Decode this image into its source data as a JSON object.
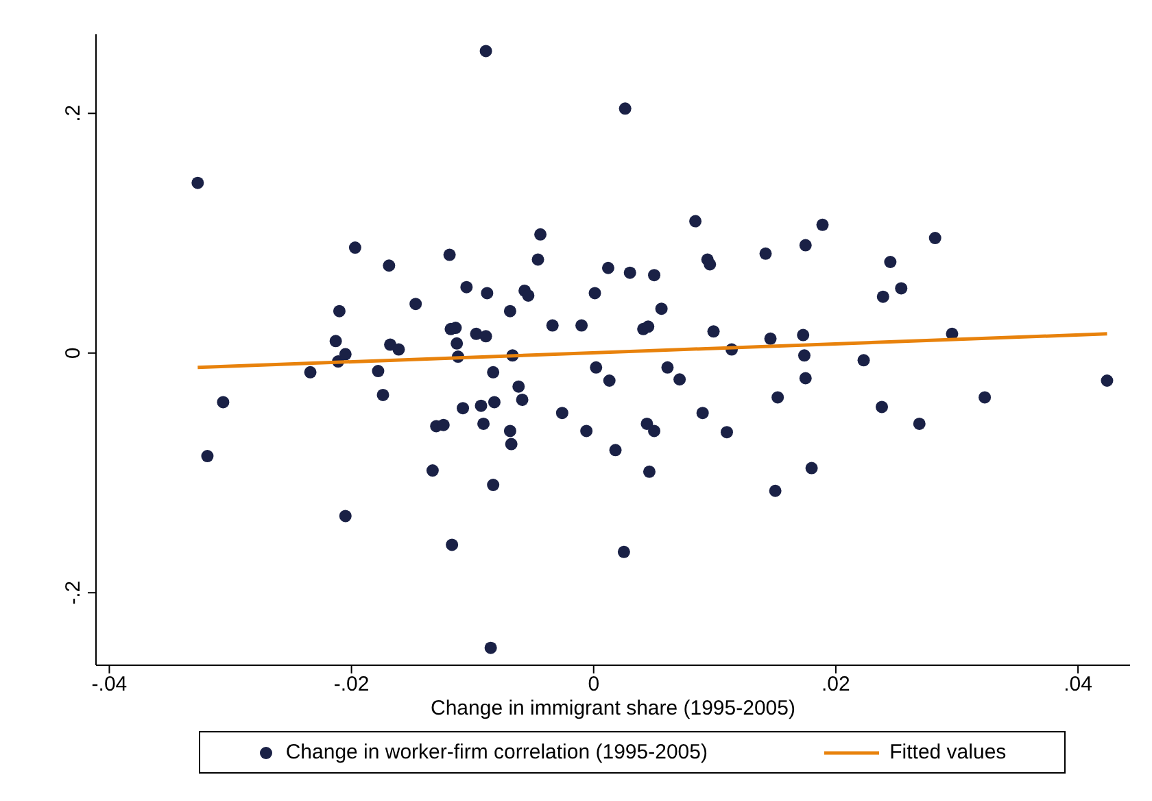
{
  "chart_data": {
    "type": "scatter",
    "xlabel": "Change in immigrant share (1995-2005)",
    "xlim": [
      -0.0411,
      0.0443
    ],
    "ylim": [
      -0.2605,
      0.266
    ],
    "xticks": [
      {
        "value": -0.04,
        "label": "-.04"
      },
      {
        "value": -0.02,
        "label": "-.02"
      },
      {
        "value": 0,
        "label": "0"
      },
      {
        "value": 0.02,
        "label": ".02"
      },
      {
        "value": 0.04,
        "label": ".04"
      }
    ],
    "yticks": [
      {
        "value": -0.2,
        "label": "-.2"
      },
      {
        "value": 0,
        "label": "0"
      },
      {
        "value": 0.2,
        "label": ".2"
      }
    ],
    "grid": false,
    "legend": "bottom",
    "series": [
      {
        "name": "Change in worker-firm correlation (1995-2005)",
        "marker": "circle",
        "color": "#1a2146",
        "x": [
          -0.0327,
          -0.0319,
          -0.0306,
          -0.0234,
          -0.0213,
          -0.021,
          -0.0211,
          -0.0205,
          -0.0205,
          -0.0197,
          -0.0178,
          -0.0174,
          -0.0169,
          -0.0168,
          -0.0161,
          -0.0147,
          -0.0133,
          -0.013,
          -0.0124,
          -0.0119,
          -0.0118,
          -0.0114,
          -0.0113,
          -0.0112,
          -0.0117,
          -0.0108,
          -0.0105,
          -0.0097,
          -0.0093,
          -0.0091,
          -0.0089,
          -0.0088,
          -0.0089,
          -0.0083,
          -0.0083,
          -0.0082,
          -0.0085,
          -0.0069,
          -0.0069,
          -0.0068,
          -0.0067,
          -0.0062,
          -0.0059,
          -0.0057,
          -0.0054,
          -0.0046,
          -0.0044,
          -0.0034,
          -0.0026,
          -0.001,
          -0.0006,
          0.0002,
          0.0001,
          0.0012,
          0.0013,
          0.0018,
          0.0025,
          0.0026,
          0.003,
          0.0041,
          0.0044,
          0.0045,
          0.0046,
          0.005,
          0.005,
          0.0056,
          0.0061,
          0.0071,
          0.0084,
          0.009,
          0.0094,
          0.0096,
          0.0099,
          0.011,
          0.0114,
          0.0142,
          0.0146,
          0.015,
          0.0152,
          0.0173,
          0.0174,
          0.0175,
          0.0175,
          0.018,
          0.0189,
          0.0223,
          0.0238,
          0.0239,
          0.0245,
          0.0254,
          0.0269,
          0.0282,
          0.0296,
          0.0323,
          0.0424
        ],
        "values": [
          0.142,
          -0.086,
          -0.041,
          -0.016,
          0.01,
          0.035,
          -0.007,
          -0.001,
          -0.136,
          0.088,
          -0.015,
          -0.035,
          0.073,
          0.007,
          0.003,
          0.041,
          -0.098,
          -0.061,
          -0.06,
          0.082,
          0.02,
          0.021,
          0.008,
          -0.003,
          -0.16,
          -0.046,
          0.055,
          0.016,
          -0.044,
          -0.059,
          0.252,
          0.05,
          0.014,
          -0.016,
          -0.11,
          -0.041,
          -0.246,
          0.035,
          -0.065,
          -0.076,
          -0.002,
          -0.028,
          -0.039,
          0.052,
          0.048,
          0.078,
          0.099,
          0.023,
          -0.05,
          0.023,
          -0.065,
          -0.012,
          0.05,
          0.071,
          -0.023,
          -0.081,
          -0.166,
          0.204,
          0.067,
          0.02,
          -0.059,
          0.022,
          -0.099,
          0.065,
          -0.065,
          0.037,
          -0.012,
          -0.022,
          0.11,
          -0.05,
          0.078,
          0.074,
          0.018,
          -0.066,
          0.003,
          0.083,
          0.012,
          -0.115,
          -0.037,
          0.015,
          -0.002,
          -0.021,
          0.09,
          -0.096,
          0.107,
          -0.006,
          -0.045,
          0.047,
          0.076,
          0.054,
          -0.059,
          0.096,
          0.016,
          -0.037,
          -0.023
        ]
      },
      {
        "name": "Fitted values",
        "type": "line",
        "marker": "none",
        "line_style": "solid",
        "color": "#e8820c",
        "x": [
          -0.0327,
          0.0424
        ],
        "values": [
          -0.012,
          0.016
        ]
      }
    ]
  }
}
